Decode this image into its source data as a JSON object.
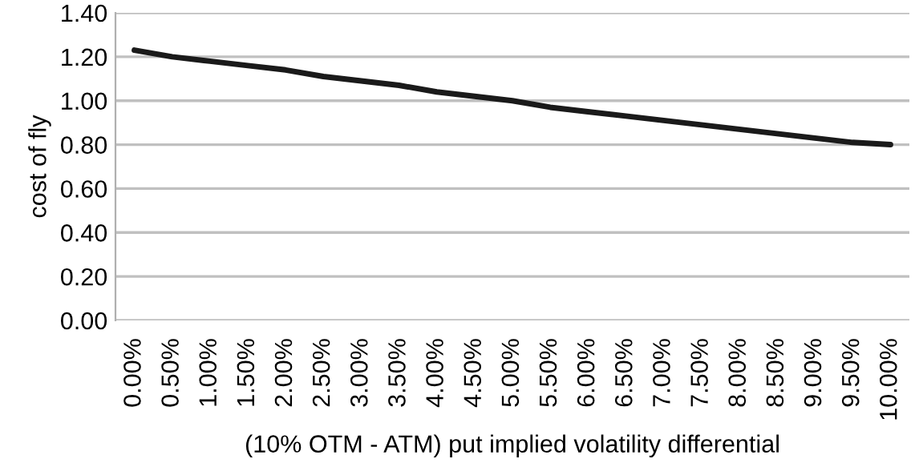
{
  "chart_data": {
    "type": "line",
    "xlabel": "(10% OTM - ATM) put implied volatility differential",
    "ylabel": "cost of fly",
    "categories": [
      "0.00%",
      "0.50%",
      "1.00%",
      "1.50%",
      "2.00%",
      "2.50%",
      "3.00%",
      "3.50%",
      "4.00%",
      "4.50%",
      "5.00%",
      "5.50%",
      "6.00%",
      "6.50%",
      "7.00%",
      "7.50%",
      "8.00%",
      "8.50%",
      "9.00%",
      "9.50%",
      "10.00%"
    ],
    "series": [
      {
        "color": "#1a1a1a",
        "values": [
          1.23,
          1.2,
          1.18,
          1.16,
          1.14,
          1.11,
          1.09,
          1.07,
          1.04,
          1.02,
          1.0,
          0.97,
          0.95,
          0.93,
          0.91,
          0.89,
          0.87,
          0.85,
          0.83,
          0.81,
          0.8
        ]
      }
    ],
    "ylim": [
      0,
      1.4
    ],
    "yticks": [
      {
        "value": 0,
        "label": "0.00"
      },
      {
        "value": 0.2,
        "label": "0.20"
      },
      {
        "value": 0.4,
        "label": "0.40"
      },
      {
        "value": 0.6,
        "label": "0.60"
      },
      {
        "value": 0.8,
        "label": "0.80"
      },
      {
        "value": 1,
        "label": "1.00"
      },
      {
        "value": 1.2,
        "label": "1.20"
      },
      {
        "value": 1.4,
        "label": "1.40"
      }
    ],
    "grid": "y",
    "legend": false
  }
}
